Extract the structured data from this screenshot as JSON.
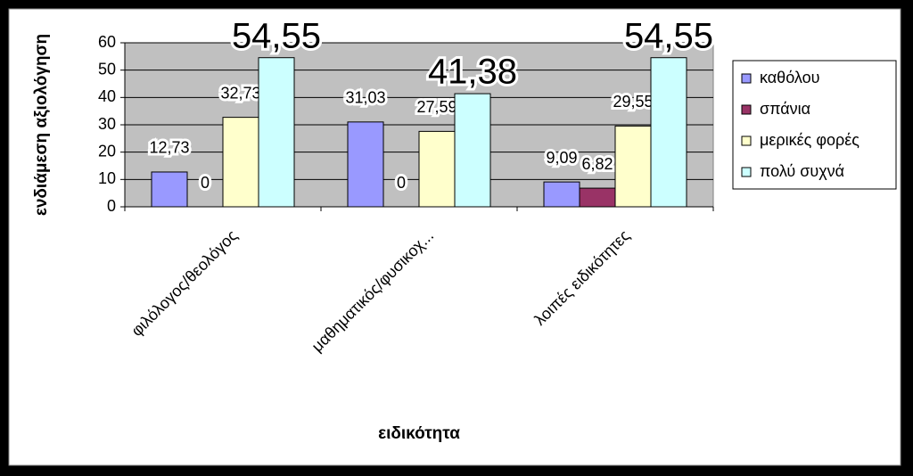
{
  "chart_data": {
    "type": "bar",
    "categories": [
      "φιλόλογος/θεολόγος",
      "μαθηματικός/φυσικοχ...",
      "λοιπές ειδικότητες"
    ],
    "series": [
      {
        "name": "καθόλου",
        "color": "#9999ff",
        "values": [
          12.73,
          31.03,
          9.09
        ],
        "value_labels": [
          "12,73",
          "31,03",
          "9,09"
        ]
      },
      {
        "name": "σπάνια",
        "color": "#993366",
        "values": [
          0,
          0,
          6.82
        ],
        "value_labels": [
          "0",
          "0",
          "6,82"
        ]
      },
      {
        "name": "μερικές φορές",
        "color": "#ffffcc",
        "values": [
          32.73,
          27.59,
          29.55
        ],
        "value_labels": [
          "32,73",
          "27,59",
          "29,55"
        ]
      },
      {
        "name": "πολύ συχνά",
        "color": "#ccffff",
        "values": [
          54.55,
          41.38,
          54.55
        ],
        "value_labels": [
          "54,55",
          "41,38",
          "54,55"
        ]
      }
    ],
    "ylim": [
      0,
      60
    ],
    "yticks": [
      0,
      10,
      20,
      30,
      40,
      50,
      60
    ],
    "grid": true,
    "y_label": "ενδιάμεση αξιολόγηση",
    "x_label": "ειδικότητα",
    "legend": "right"
  }
}
